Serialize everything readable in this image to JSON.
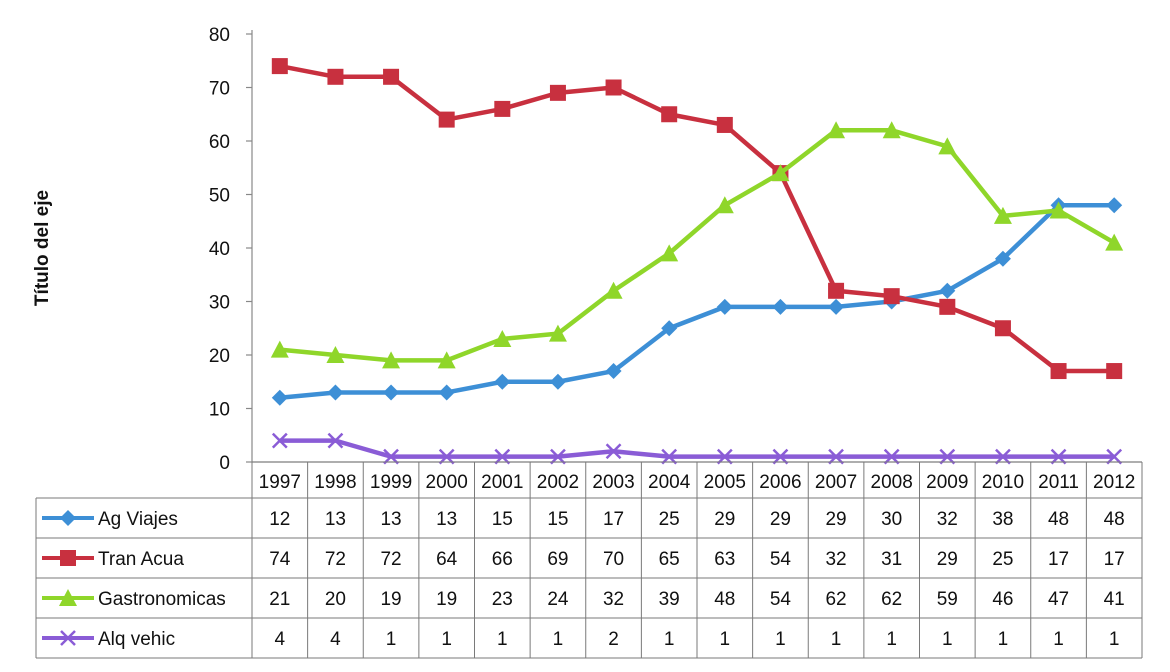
{
  "chart_data": {
    "type": "line",
    "title": "",
    "xlabel": "",
    "ylabel": "Título del eje",
    "categories": [
      "1997",
      "1998",
      "1999",
      "2000",
      "2001",
      "2002",
      "2003",
      "2004",
      "2005",
      "2006",
      "2007",
      "2008",
      "2009",
      "2010",
      "2011",
      "2012"
    ],
    "ylim": [
      0,
      80
    ],
    "yticks": [
      "0",
      "10",
      "20",
      "30",
      "40",
      "50",
      "60",
      "70",
      "80"
    ],
    "grid": false,
    "legend": "data-table",
    "series": [
      {
        "name": "Ag Viajes",
        "color": "#3d8fd6",
        "marker": "diamond",
        "values": [
          12,
          13,
          13,
          13,
          15,
          15,
          17,
          25,
          29,
          29,
          29,
          30,
          32,
          38,
          48,
          48
        ]
      },
      {
        "name": "Tran Acua",
        "color": "#c8303f",
        "marker": "square",
        "values": [
          74,
          72,
          72,
          64,
          66,
          69,
          70,
          65,
          63,
          54,
          32,
          31,
          29,
          25,
          17,
          17
        ]
      },
      {
        "name": "Gastronomicas",
        "color": "#8fd62a",
        "marker": "triangle",
        "values": [
          21,
          20,
          19,
          19,
          23,
          24,
          32,
          39,
          48,
          54,
          62,
          62,
          59,
          46,
          47,
          41
        ]
      },
      {
        "name": "Alq vehic",
        "color": "#8a5cd6",
        "marker": "x",
        "values": [
          4,
          4,
          1,
          1,
          1,
          1,
          2,
          1,
          1,
          1,
          1,
          1,
          1,
          1,
          1,
          1
        ]
      }
    ]
  }
}
